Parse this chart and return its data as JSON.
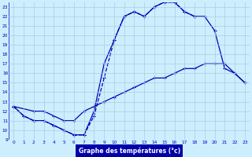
{
  "title": "Graphe des températures (°c)",
  "bg_color": "#cceeff",
  "grid_color": "#aaccdd",
  "line_color": "#0000bb",
  "xlim": [
    -0.5,
    23.5
  ],
  "ylim": [
    9,
    23.5
  ],
  "xticks": [
    0,
    1,
    2,
    3,
    4,
    5,
    6,
    7,
    8,
    9,
    10,
    11,
    12,
    13,
    14,
    15,
    16,
    17,
    18,
    19,
    20,
    21,
    22,
    23
  ],
  "yticks": [
    9,
    10,
    11,
    12,
    13,
    14,
    15,
    16,
    17,
    18,
    19,
    20,
    21,
    22,
    23
  ],
  "line1_x": [
    0,
    1,
    2,
    3,
    4,
    5,
    6,
    7,
    8,
    9,
    10,
    11,
    12,
    13,
    14,
    15,
    16,
    17,
    18
  ],
  "line1_y": [
    12.5,
    11.5,
    11,
    11,
    10.5,
    10,
    9.5,
    9.5,
    11.5,
    15.5,
    19.5,
    22,
    22.5,
    22,
    23,
    23.5,
    23.5,
    22.5,
    22
  ],
  "line2_x": [
    0,
    2,
    3,
    4,
    5,
    6,
    7,
    8,
    9,
    10,
    11,
    12,
    13,
    14,
    15,
    16,
    17,
    18,
    19,
    20,
    21,
    22,
    23
  ],
  "line2_y": [
    12.5,
    12,
    12,
    11.5,
    11,
    11,
    12,
    12.5,
    13,
    13.5,
    14,
    14.5,
    15,
    15.5,
    15.5,
    16,
    16.5,
    16.5,
    17,
    17,
    17,
    16,
    15
  ],
  "line3_x": [
    0,
    1,
    2,
    3,
    4,
    5,
    6,
    7,
    8,
    9,
    10,
    11,
    12,
    13,
    14,
    15,
    16,
    17,
    18,
    19,
    20,
    21,
    22,
    23
  ],
  "line3_y": [
    12.5,
    11.5,
    11,
    11,
    10.5,
    10,
    9.5,
    9.5,
    12,
    17,
    19.5,
    22,
    22.5,
    22,
    23,
    23.5,
    23.5,
    22.5,
    22,
    22,
    20.5,
    16.5,
    16,
    15
  ],
  "line1_style": "--",
  "line2_style": "-",
  "line3_style": "-"
}
